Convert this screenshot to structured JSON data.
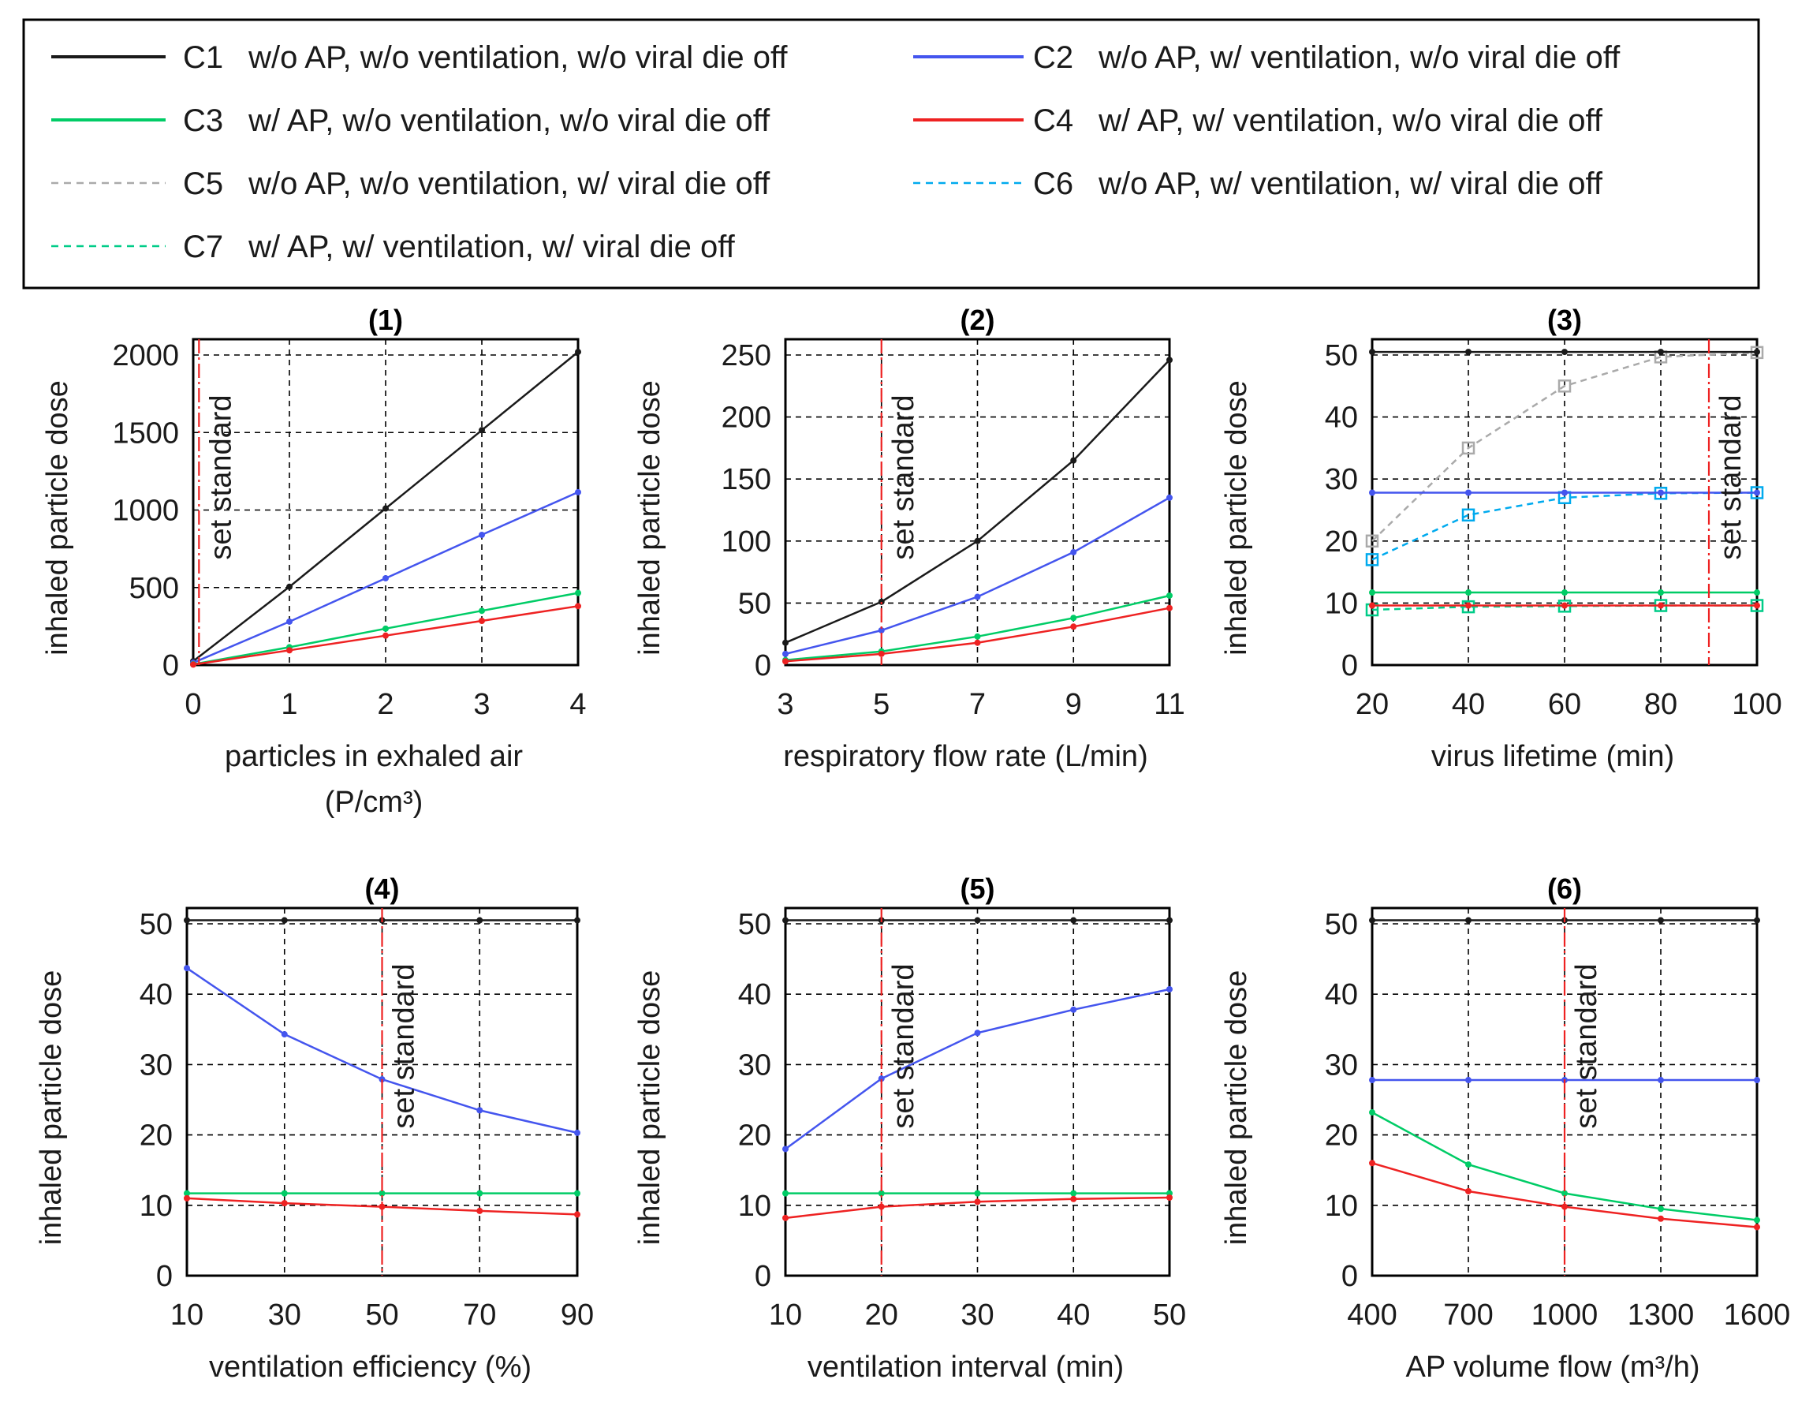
{
  "legend": {
    "entries": [
      {
        "id": "C1",
        "label": "w/o AP,  w/o ventilation, w/o viral die off",
        "color": "#1a1a1a",
        "dash": false
      },
      {
        "id": "C2",
        "label": "w/o AP,  w/   ventilation, w/o viral die off",
        "color": "#4455ee",
        "dash": false
      },
      {
        "id": "C3",
        "label": "w/   AP,  w/o ventilation, w/o viral die off",
        "color": "#00cc66",
        "dash": false
      },
      {
        "id": "C4",
        "label": "w/   AP,  w/   ventilation, w/o viral die off",
        "color": "#ee2222",
        "dash": false
      },
      {
        "id": "C5",
        "label": "w/o AP,  w/o ventilation, w/   viral die off",
        "color": "#aaaaaa",
        "dash": true
      },
      {
        "id": "C6",
        "label": "w/o AP,  w/   ventilation, w/   viral die off",
        "color": "#00aaee",
        "dash": true
      },
      {
        "id": "C7",
        "label": "w/   AP,  w/   ventilation, w/   viral die off",
        "color": "#00cc88",
        "dash": true
      }
    ]
  },
  "standard_label": "set standard",
  "standard_color": "#ee2222",
  "chart_data": [
    {
      "type": "line",
      "title": "(1)",
      "xlabel": [
        "particles in exhaled air",
        "(P/cm³)"
      ],
      "ylabel": "inhaled particle dose",
      "x": [
        0,
        1,
        2,
        3,
        4
      ],
      "xticks": [
        "0",
        "1",
        "2",
        "3",
        "4"
      ],
      "xlim": [
        0,
        4
      ],
      "ylim": [
        0,
        2000
      ],
      "yticks": [
        0,
        500,
        1000,
        1500,
        2000
      ],
      "standard_x": 0.06,
      "series": [
        {
          "id": "C1",
          "values": [
            25,
            505,
            1010,
            1515,
            2020
          ]
        },
        {
          "id": "C2",
          "values": [
            15,
            280,
            560,
            840,
            1115
          ]
        },
        {
          "id": "C3",
          "values": [
            5,
            115,
            235,
            350,
            465
          ]
        },
        {
          "id": "C4",
          "values": [
            3,
            95,
            190,
            285,
            380
          ]
        }
      ]
    },
    {
      "type": "line",
      "title": "(2)",
      "xlabel": [
        "respiratory flow rate (L/min)"
      ],
      "ylabel": "inhaled particle dose",
      "x": [
        3,
        5,
        7,
        9,
        11
      ],
      "xticks": [
        "3",
        "5",
        "7",
        "9",
        "11"
      ],
      "xlim": [
        3,
        11
      ],
      "ylim": [
        0,
        250
      ],
      "yticks": [
        0,
        50,
        100,
        150,
        200,
        250
      ],
      "standard_x": 5,
      "series": [
        {
          "id": "C1",
          "values": [
            18,
            51,
            100,
            165,
            246
          ]
        },
        {
          "id": "C2",
          "values": [
            9,
            28,
            55,
            91,
            135
          ]
        },
        {
          "id": "C3",
          "values": [
            4,
            11,
            23,
            38,
            56
          ]
        },
        {
          "id": "C4",
          "values": [
            3,
            9,
            18,
            31,
            46
          ]
        }
      ]
    },
    {
      "type": "line",
      "title": "(3)",
      "xlabel": [
        "virus lifetime (min)"
      ],
      "ylabel": "inhaled particle dose",
      "x": [
        20,
        40,
        60,
        80,
        100
      ],
      "xticks": [
        "20",
        "40",
        "60",
        "80",
        "100"
      ],
      "xlim": [
        20,
        100
      ],
      "ylim": [
        0,
        50
      ],
      "yticks": [
        0,
        10,
        20,
        30,
        40,
        50
      ],
      "standard_x": 90,
      "series": [
        {
          "id": "C1",
          "values": [
            50.5,
            50.5,
            50.5,
            50.5,
            50.5
          ]
        },
        {
          "id": "C2",
          "values": [
            27.8,
            27.8,
            27.8,
            27.8,
            27.8
          ]
        },
        {
          "id": "C3",
          "values": [
            11.7,
            11.7,
            11.7,
            11.7,
            11.7
          ]
        },
        {
          "id": "C4",
          "values": [
            9.6,
            9.6,
            9.6,
            9.6,
            9.6
          ]
        },
        {
          "id": "C5",
          "values": [
            20,
            35,
            45,
            49.7,
            50.4
          ],
          "marker": "square"
        },
        {
          "id": "C6",
          "values": [
            17,
            24.2,
            27,
            27.7,
            27.8
          ],
          "marker": "square"
        },
        {
          "id": "C7",
          "values": [
            8.9,
            9.4,
            9.5,
            9.6,
            9.6
          ],
          "marker": "square"
        }
      ]
    },
    {
      "type": "line",
      "title": "(4)",
      "xlabel": [
        "ventilation efficiency (%)"
      ],
      "ylabel": "inhaled particle dose",
      "x": [
        10,
        30,
        50,
        70,
        90
      ],
      "xticks": [
        "10",
        "30",
        "50",
        "70",
        "90"
      ],
      "xlim": [
        10,
        90
      ],
      "ylim": [
        0,
        50
      ],
      "yticks": [
        0,
        10,
        20,
        30,
        40,
        50
      ],
      "standard_x": 50,
      "series": [
        {
          "id": "C1",
          "values": [
            50.5,
            50.5,
            50.5,
            50.5,
            50.5
          ]
        },
        {
          "id": "C2",
          "values": [
            43.7,
            34.3,
            27.9,
            23.5,
            20.3
          ]
        },
        {
          "id": "C3",
          "values": [
            11.7,
            11.7,
            11.7,
            11.7,
            11.7
          ]
        },
        {
          "id": "C4",
          "values": [
            11,
            10.3,
            9.8,
            9.2,
            8.7
          ]
        }
      ]
    },
    {
      "type": "line",
      "title": "(5)",
      "xlabel": [
        "ventilation interval (min)"
      ],
      "ylabel": "inhaled particle dose",
      "x": [
        10,
        20,
        30,
        40,
        50
      ],
      "xticks": [
        "10",
        "20",
        "30",
        "40",
        "50"
      ],
      "xlim": [
        10,
        50
      ],
      "ylim": [
        0,
        50
      ],
      "yticks": [
        0,
        10,
        20,
        30,
        40,
        50
      ],
      "standard_x": 20,
      "series": [
        {
          "id": "C1",
          "values": [
            50.5,
            50.5,
            50.5,
            50.5,
            50.5
          ]
        },
        {
          "id": "C2",
          "values": [
            18,
            28,
            34.5,
            37.8,
            40.7
          ]
        },
        {
          "id": "C3",
          "values": [
            11.7,
            11.7,
            11.7,
            11.7,
            11.7
          ]
        },
        {
          "id": "C4",
          "values": [
            8.2,
            9.8,
            10.5,
            10.9,
            11.1
          ]
        }
      ]
    },
    {
      "type": "line",
      "title": "(6)",
      "xlabel": [
        "AP volume flow (m³/h)"
      ],
      "ylabel": "inhaled particle dose",
      "x": [
        400,
        700,
        1000,
        1300,
        1600
      ],
      "xticks": [
        "400",
        "700",
        "1000",
        "1300",
        "1600"
      ],
      "xlim": [
        400,
        1600
      ],
      "ylim": [
        0,
        50
      ],
      "yticks": [
        0,
        10,
        20,
        30,
        40,
        50
      ],
      "standard_x": 1000,
      "series": [
        {
          "id": "C1",
          "values": [
            50.5,
            50.5,
            50.5,
            50.5,
            50.5
          ]
        },
        {
          "id": "C2",
          "values": [
            27.8,
            27.8,
            27.8,
            27.8,
            27.8
          ]
        },
        {
          "id": "C3",
          "values": [
            23.2,
            15.8,
            11.7,
            9.5,
            7.9
          ]
        },
        {
          "id": "C4",
          "values": [
            16,
            12,
            9.8,
            8.1,
            6.9
          ]
        }
      ]
    }
  ]
}
